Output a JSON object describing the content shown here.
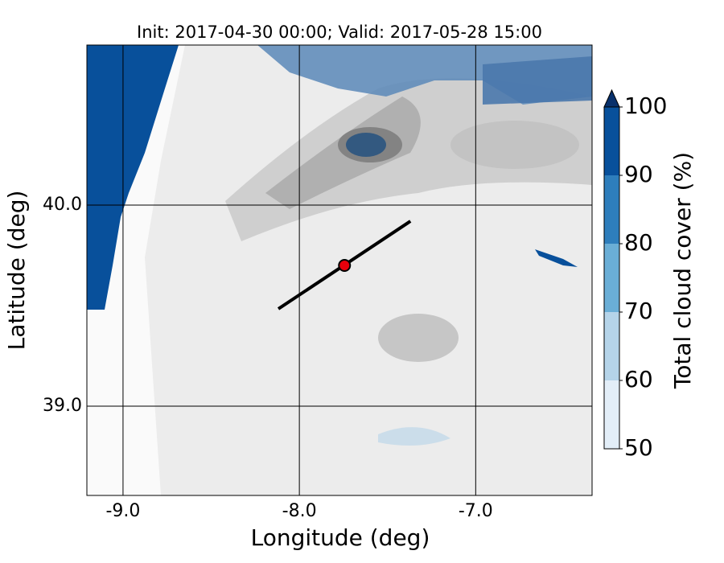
{
  "chart_data": {
    "type": "map",
    "title": "Init: 2017-04-30 00:00; Valid: 2017-05-28 15:00",
    "xlabel": "Longitude (deg)",
    "ylabel": "Latitude (deg)",
    "xlim": [
      -9.205,
      -6.34
    ],
    "ylim": [
      38.556,
      40.796
    ],
    "xticks": [
      {
        "value": -9,
        "label": "-9.0"
      },
      {
        "value": -8,
        "label": "-8.0"
      },
      {
        "value": -7,
        "label": "-7.0"
      }
    ],
    "yticks": [
      {
        "value": 39,
        "label": "39.0"
      },
      {
        "value": 40,
        "label": "40.0"
      }
    ],
    "grid": true,
    "transect": {
      "x": [
        -8.119,
        -7.37
      ],
      "y": [
        39.484,
        39.92
      ],
      "color": "#000000"
    },
    "point": {
      "x": -7.744,
      "y": 39.7,
      "color": "#e8000b"
    },
    "colorbar": {
      "label": "Total cloud cover (%)",
      "ticks": [
        50,
        60,
        70,
        80,
        90,
        100
      ],
      "colors": [
        "#e3eef8",
        "#b5d4e9",
        "#6aaed6",
        "#2e7ebc",
        "#08509b"
      ],
      "extend_color": "#08306b"
    }
  }
}
